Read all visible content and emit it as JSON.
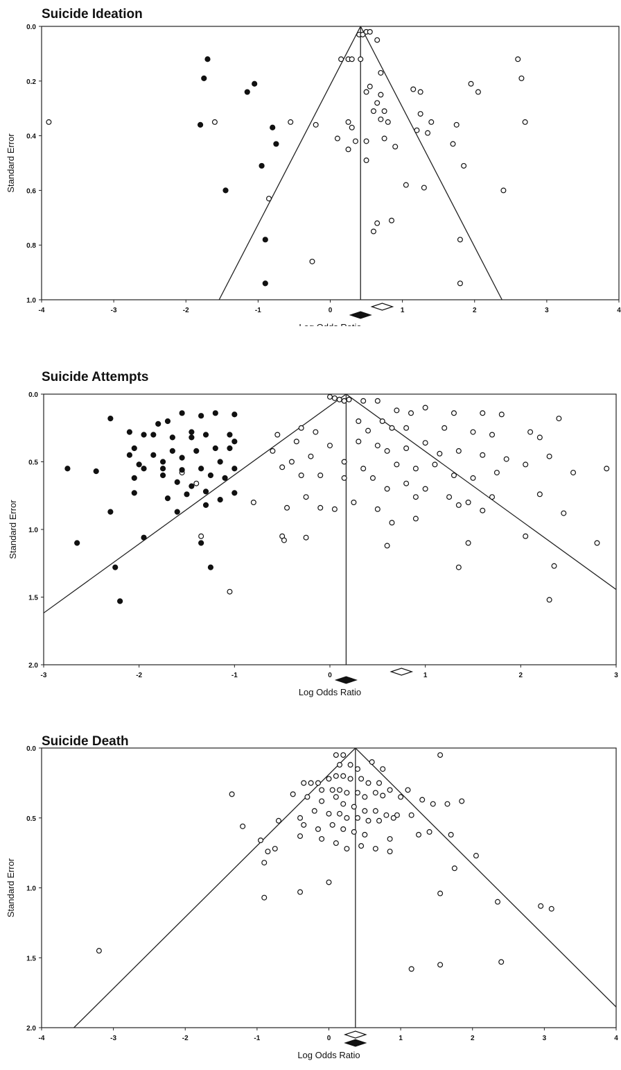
{
  "chart_data": [
    {
      "type": "scatter",
      "title": "Suicide Ideation",
      "xlabel": "Log Odds Ratio",
      "ylabel": "Standard Error",
      "xlim": [
        -4,
        4
      ],
      "ylim": [
        1.0,
        0.0
      ],
      "x_ticks": [
        "-4",
        "-3",
        "-2",
        "-1",
        "0",
        "1",
        "2",
        "3",
        "4"
      ],
      "y_ticks": [
        "0.0",
        "0.2",
        "0.4",
        "0.6",
        "0.8",
        "1.0"
      ],
      "pooled_estimate": 0.42,
      "funnel_z": 1.96,
      "observed_diamond": 0.42,
      "adjusted_diamond": 0.72,
      "observed_points": [
        [
          0.4,
          0.03
        ],
        [
          0.45,
          0.03
        ],
        [
          0.5,
          0.02
        ],
        [
          0.55,
          0.02
        ],
        [
          0.65,
          0.05
        ],
        [
          0.15,
          0.12
        ],
        [
          0.25,
          0.12
        ],
        [
          0.3,
          0.12
        ],
        [
          0.42,
          0.12
        ],
        [
          0.7,
          0.17
        ],
        [
          2.6,
          0.12
        ],
        [
          2.65,
          0.19
        ],
        [
          1.95,
          0.21
        ],
        [
          2.05,
          0.24
        ],
        [
          1.15,
          0.23
        ],
        [
          1.25,
          0.24
        ],
        [
          0.5,
          0.24
        ],
        [
          0.55,
          0.22
        ],
        [
          0.7,
          0.25
        ],
        [
          0.65,
          0.28
        ],
        [
          0.75,
          0.31
        ],
        [
          0.6,
          0.31
        ],
        [
          1.25,
          0.32
        ],
        [
          1.4,
          0.35
        ],
        [
          1.75,
          0.36
        ],
        [
          2.7,
          0.35
        ],
        [
          -3.9,
          0.35
        ],
        [
          -1.6,
          0.35
        ],
        [
          -0.55,
          0.35
        ],
        [
          -0.2,
          0.36
        ],
        [
          0.25,
          0.35
        ],
        [
          0.3,
          0.37
        ],
        [
          0.7,
          0.34
        ],
        [
          0.8,
          0.35
        ],
        [
          1.2,
          0.38
        ],
        [
          1.35,
          0.39
        ],
        [
          0.1,
          0.41
        ],
        [
          0.35,
          0.42
        ],
        [
          0.5,
          0.42
        ],
        [
          0.75,
          0.41
        ],
        [
          0.9,
          0.44
        ],
        [
          1.7,
          0.43
        ],
        [
          0.25,
          0.45
        ],
        [
          0.5,
          0.49
        ],
        [
          1.85,
          0.51
        ],
        [
          1.05,
          0.58
        ],
        [
          1.3,
          0.59
        ],
        [
          2.4,
          0.6
        ],
        [
          -0.85,
          0.63
        ],
        [
          0.65,
          0.72
        ],
        [
          0.6,
          0.75
        ],
        [
          0.85,
          0.71
        ],
        [
          1.8,
          0.78
        ],
        [
          -0.25,
          0.86
        ],
        [
          1.8,
          0.94
        ]
      ],
      "imputed_points": [
        [
          -1.7,
          0.12
        ],
        [
          -1.75,
          0.19
        ],
        [
          -1.05,
          0.21
        ],
        [
          -1.15,
          0.24
        ],
        [
          -1.8,
          0.36
        ],
        [
          -0.8,
          0.37
        ],
        [
          -0.75,
          0.43
        ],
        [
          -0.95,
          0.51
        ],
        [
          -1.45,
          0.6
        ],
        [
          -0.9,
          0.78
        ],
        [
          -0.9,
          0.94
        ]
      ]
    },
    {
      "type": "scatter",
      "title": "Suicide Attempts",
      "xlabel": "Log Odds Ratio",
      "ylabel": "Standard Error",
      "xlim": [
        -3,
        3
      ],
      "ylim": [
        2.0,
        0.0
      ],
      "x_ticks": [
        "-3",
        "-2",
        "-1",
        "0",
        "1",
        "2",
        "3"
      ],
      "y_ticks": [
        "0.0",
        "0.5",
        "1.0",
        "1.5",
        "2.0"
      ],
      "pooled_estimate": 0.17,
      "funnel_z": 1.96,
      "observed_diamond": 0.17,
      "adjusted_diamond": 0.75,
      "observed_points": [
        [
          0.0,
          0.02
        ],
        [
          0.05,
          0.03
        ],
        [
          0.1,
          0.04
        ],
        [
          0.15,
          0.05
        ],
        [
          0.2,
          0.04
        ],
        [
          0.35,
          0.05
        ],
        [
          0.5,
          0.05
        ],
        [
          0.7,
          0.12
        ],
        [
          0.85,
          0.14
        ],
        [
          1.0,
          0.1
        ],
        [
          1.3,
          0.14
        ],
        [
          1.6,
          0.14
        ],
        [
          1.8,
          0.15
        ],
        [
          2.4,
          0.18
        ],
        [
          0.3,
          0.2
        ],
        [
          0.55,
          0.2
        ],
        [
          0.4,
          0.27
        ],
        [
          0.65,
          0.25
        ],
        [
          0.8,
          0.25
        ],
        [
          1.2,
          0.25
        ],
        [
          1.5,
          0.28
        ],
        [
          1.7,
          0.3
        ],
        [
          2.1,
          0.28
        ],
        [
          2.2,
          0.32
        ],
        [
          -0.3,
          0.25
        ],
        [
          -0.15,
          0.28
        ],
        [
          -0.55,
          0.3
        ],
        [
          -0.35,
          0.35
        ],
        [
          0.3,
          0.35
        ],
        [
          0.5,
          0.38
        ],
        [
          0.6,
          0.42
        ],
        [
          0.8,
          0.4
        ],
        [
          1.0,
          0.36
        ],
        [
          1.15,
          0.44
        ],
        [
          1.35,
          0.42
        ],
        [
          1.6,
          0.45
        ],
        [
          1.85,
          0.48
        ],
        [
          2.05,
          0.52
        ],
        [
          2.3,
          0.46
        ],
        [
          -0.6,
          0.42
        ],
        [
          -0.4,
          0.5
        ],
        [
          -0.2,
          0.46
        ],
        [
          0.0,
          0.38
        ],
        [
          0.15,
          0.5
        ],
        [
          0.35,
          0.55
        ],
        [
          0.7,
          0.52
        ],
        [
          0.9,
          0.55
        ],
        [
          1.1,
          0.52
        ],
        [
          1.3,
          0.6
        ],
        [
          1.5,
          0.62
        ],
        [
          1.75,
          0.58
        ],
        [
          2.55,
          0.58
        ],
        [
          2.9,
          0.55
        ],
        [
          -0.5,
          0.54
        ],
        [
          -0.3,
          0.6
        ],
        [
          -0.1,
          0.6
        ],
        [
          0.15,
          0.62
        ],
        [
          0.45,
          0.62
        ],
        [
          0.6,
          0.7
        ],
        [
          0.8,
          0.66
        ],
        [
          1.0,
          0.7
        ],
        [
          1.25,
          0.76
        ],
        [
          1.45,
          0.8
        ],
        [
          1.7,
          0.76
        ],
        [
          2.2,
          0.74
        ],
        [
          -0.8,
          0.8
        ],
        [
          -0.1,
          0.84
        ],
        [
          0.05,
          0.85
        ],
        [
          0.25,
          0.8
        ],
        [
          0.5,
          0.85
        ],
        [
          0.9,
          0.76
        ],
        [
          1.6,
          0.86
        ],
        [
          2.45,
          0.88
        ],
        [
          -0.45,
          0.84
        ],
        [
          -0.25,
          0.76
        ],
        [
          0.65,
          0.95
        ],
        [
          0.9,
          0.92
        ],
        [
          1.35,
          0.82
        ],
        [
          -0.5,
          1.05
        ],
        [
          -0.48,
          1.08
        ],
        [
          -0.25,
          1.06
        ],
        [
          0.6,
          1.12
        ],
        [
          1.45,
          1.1
        ],
        [
          2.05,
          1.05
        ],
        [
          2.8,
          1.1
        ],
        [
          1.35,
          1.28
        ],
        [
          2.35,
          1.27
        ],
        [
          2.3,
          1.52
        ],
        [
          -1.05,
          1.46
        ],
        [
          -1.55,
          0.58
        ],
        [
          -1.4,
          0.66
        ],
        [
          -1.35,
          1.05
        ]
      ],
      "imputed_points": [
        [
          -2.3,
          0.18
        ],
        [
          -2.1,
          0.28
        ],
        [
          -1.95,
          0.3
        ],
        [
          -1.8,
          0.22
        ],
        [
          -1.7,
          0.2
        ],
        [
          -1.55,
          0.14
        ],
        [
          -1.35,
          0.16
        ],
        [
          -1.2,
          0.14
        ],
        [
          -1.0,
          0.15
        ],
        [
          -1.05,
          0.3
        ],
        [
          -1.3,
          0.3
        ],
        [
          -1.45,
          0.32
        ],
        [
          -1.65,
          0.32
        ],
        [
          -1.85,
          0.3
        ],
        [
          -2.05,
          0.4
        ],
        [
          -2.1,
          0.45
        ],
        [
          -2.0,
          0.52
        ],
        [
          -1.75,
          0.5
        ],
        [
          -1.55,
          0.47
        ],
        [
          -1.4,
          0.42
        ],
        [
          -1.2,
          0.4
        ],
        [
          -1.05,
          0.4
        ],
        [
          -1.0,
          0.35
        ],
        [
          -1.15,
          0.5
        ],
        [
          -1.35,
          0.55
        ],
        [
          -1.55,
          0.56
        ],
        [
          -1.75,
          0.55
        ],
        [
          -1.95,
          0.55
        ],
        [
          -2.05,
          0.62
        ],
        [
          -1.6,
          0.65
        ],
        [
          -1.45,
          0.68
        ],
        [
          -1.3,
          0.72
        ],
        [
          -1.15,
          0.78
        ],
        [
          -1.0,
          0.73
        ],
        [
          -1.7,
          0.77
        ],
        [
          -1.5,
          0.74
        ],
        [
          -2.75,
          0.55
        ],
        [
          -2.45,
          0.57
        ],
        [
          -2.05,
          0.73
        ],
        [
          -1.6,
          0.87
        ],
        [
          -2.3,
          0.87
        ],
        [
          -2.65,
          1.1
        ],
        [
          -1.95,
          1.06
        ],
        [
          -1.35,
          1.1
        ],
        [
          -1.25,
          1.28
        ],
        [
          -2.25,
          1.28
        ],
        [
          -2.2,
          1.53
        ],
        [
          -1.3,
          0.82
        ],
        [
          -1.0,
          0.55
        ],
        [
          -1.1,
          0.62
        ],
        [
          -1.25,
          0.6
        ],
        [
          -1.85,
          0.45
        ],
        [
          -1.65,
          0.42
        ],
        [
          -1.45,
          0.28
        ],
        [
          -1.75,
          0.6
        ]
      ]
    },
    {
      "type": "scatter",
      "title": "Suicide Death",
      "xlabel": "Log Odds Ratio",
      "ylabel": "Standard Error",
      "xlim": [
        -4,
        4
      ],
      "ylim": [
        2.0,
        0.0
      ],
      "x_ticks": [
        "-4",
        "-3",
        "-2",
        "-1",
        "0",
        "1",
        "2",
        "3",
        "4"
      ],
      "y_ticks": [
        "0.0",
        "0.5",
        "1.0",
        "1.5",
        "2.0"
      ],
      "pooled_estimate": 0.37,
      "funnel_z": 1.96,
      "observed_diamond": 0.37,
      "adjusted_diamond": 0.37,
      "observed_points": [
        [
          0.1,
          0.05
        ],
        [
          0.2,
          0.05
        ],
        [
          0.3,
          0.12
        ],
        [
          0.15,
          0.12
        ],
        [
          0.4,
          0.15
        ],
        [
          0.6,
          0.1
        ],
        [
          0.75,
          0.15
        ],
        [
          1.1,
          0.3
        ],
        [
          1.55,
          0.05
        ],
        [
          0.0,
          0.22
        ],
        [
          0.1,
          0.2
        ],
        [
          0.2,
          0.2
        ],
        [
          0.3,
          0.22
        ],
        [
          0.45,
          0.22
        ],
        [
          0.55,
          0.25
        ],
        [
          0.7,
          0.25
        ],
        [
          0.85,
          0.3
        ],
        [
          -0.35,
          0.25
        ],
        [
          -0.25,
          0.25
        ],
        [
          -0.15,
          0.25
        ],
        [
          -0.1,
          0.3
        ],
        [
          0.05,
          0.3
        ],
        [
          0.15,
          0.3
        ],
        [
          0.25,
          0.32
        ],
        [
          0.4,
          0.32
        ],
        [
          0.5,
          0.35
        ],
        [
          0.65,
          0.32
        ],
        [
          0.75,
          0.34
        ],
        [
          1.0,
          0.35
        ],
        [
          1.3,
          0.37
        ],
        [
          1.45,
          0.4
        ],
        [
          1.65,
          0.4
        ],
        [
          1.85,
          0.38
        ],
        [
          -1.35,
          0.33
        ],
        [
          -0.5,
          0.33
        ],
        [
          -0.3,
          0.35
        ],
        [
          -0.1,
          0.38
        ],
        [
          0.1,
          0.35
        ],
        [
          0.2,
          0.4
        ],
        [
          0.35,
          0.42
        ],
        [
          0.5,
          0.45
        ],
        [
          0.65,
          0.45
        ],
        [
          0.8,
          0.48
        ],
        [
          0.95,
          0.48
        ],
        [
          1.15,
          0.48
        ],
        [
          -0.7,
          0.52
        ],
        [
          -0.4,
          0.5
        ],
        [
          -0.2,
          0.45
        ],
        [
          0.0,
          0.47
        ],
        [
          0.15,
          0.47
        ],
        [
          0.25,
          0.5
        ],
        [
          0.4,
          0.5
        ],
        [
          0.55,
          0.52
        ],
        [
          0.7,
          0.52
        ],
        [
          0.9,
          0.5
        ],
        [
          -1.2,
          0.56
        ],
        [
          -0.35,
          0.55
        ],
        [
          -0.15,
          0.58
        ],
        [
          0.05,
          0.55
        ],
        [
          0.2,
          0.58
        ],
        [
          0.35,
          0.6
        ],
        [
          0.5,
          0.62
        ],
        [
          0.85,
          0.65
        ],
        [
          1.25,
          0.62
        ],
        [
          1.4,
          0.6
        ],
        [
          1.7,
          0.62
        ],
        [
          -0.4,
          0.63
        ],
        [
          -0.1,
          0.65
        ],
        [
          0.1,
          0.68
        ],
        [
          0.25,
          0.72
        ],
        [
          0.45,
          0.7
        ],
        [
          0.65,
          0.72
        ],
        [
          0.85,
          0.74
        ],
        [
          -0.85,
          0.74
        ],
        [
          -0.75,
          0.72
        ],
        [
          -0.95,
          0.66
        ],
        [
          -0.9,
          0.82
        ],
        [
          2.05,
          0.77
        ],
        [
          1.75,
          0.86
        ],
        [
          0.0,
          0.96
        ],
        [
          -0.4,
          1.03
        ],
        [
          -0.9,
          1.07
        ],
        [
          1.55,
          1.04
        ],
        [
          2.35,
          1.1
        ],
        [
          2.95,
          1.13
        ],
        [
          3.1,
          1.15
        ],
        [
          -3.2,
          1.45
        ],
        [
          1.15,
          1.58
        ],
        [
          1.55,
          1.55
        ],
        [
          2.4,
          1.53
        ]
      ],
      "imputed_points": []
    }
  ]
}
